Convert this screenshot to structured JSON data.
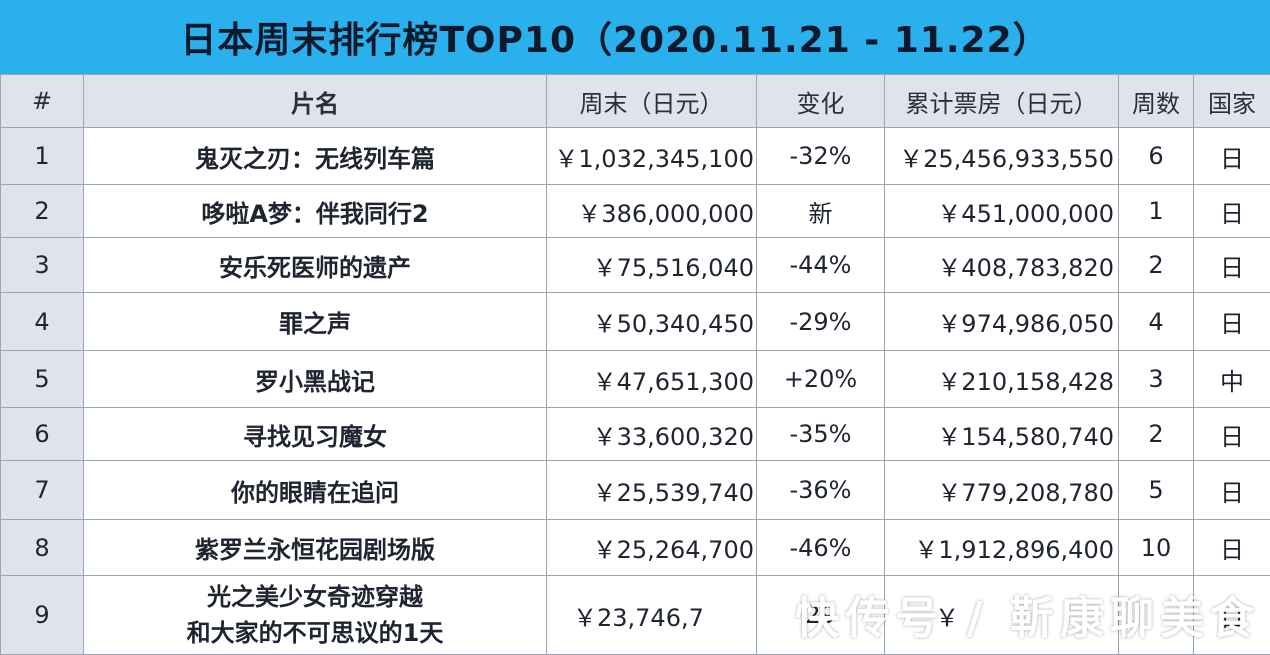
{
  "title": "日本周末排行榜TOP10（2020.11.21 - 11.22）",
  "columns": {
    "rank": "#",
    "name": "片名",
    "weekend": "周末（日元）",
    "change": "变化",
    "cumulative": "累计票房（日元）",
    "weeks": "周数",
    "country": "国家"
  },
  "rows": [
    {
      "rank": "1",
      "name": "鬼灭之刃：无线列车篇",
      "weekend": "￥1,032,345,100",
      "change": "-32%",
      "cumulative": "￥25,456,933,550",
      "weeks": "6",
      "country": "日"
    },
    {
      "rank": "2",
      "name": "哆啦A梦：伴我同行2",
      "weekend": "￥386,000,000",
      "change": "新",
      "cumulative": "￥451,000,000",
      "weeks": "1",
      "country": "日"
    },
    {
      "rank": "3",
      "name": "安乐死医师的遗产",
      "weekend": "￥75,516,040",
      "change": "-44%",
      "cumulative": "￥408,783,820",
      "weeks": "2",
      "country": "日"
    },
    {
      "rank": "4",
      "name": "罪之声",
      "weekend": "￥50,340,450",
      "change": "-29%",
      "cumulative": "￥974,986,050",
      "weeks": "4",
      "country": "日"
    },
    {
      "rank": "5",
      "name": "罗小黑战记",
      "weekend": "￥47,651,300",
      "change": "+20%",
      "cumulative": "￥210,158,428",
      "weeks": "3",
      "country": "中"
    },
    {
      "rank": "6",
      "name": "寻找见习魔女",
      "weekend": "￥33,600,320",
      "change": "-35%",
      "cumulative": "￥154,580,740",
      "weeks": "2",
      "country": "日"
    },
    {
      "rank": "7",
      "name": "你的眼睛在追问",
      "weekend": "￥25,539,740",
      "change": "-36%",
      "cumulative": "￥779,208,780",
      "weeks": "5",
      "country": "日"
    },
    {
      "rank": "8",
      "name": "紫罗兰永恒花园剧场版",
      "weekend": "￥25,264,700",
      "change": "-46%",
      "cumulative": "￥1,912,896,400",
      "weeks": "10",
      "country": "日"
    },
    {
      "rank": "9",
      "name_line1": "光之美少女奇迹穿越",
      "name_line2": "和大家的不可思议的1天",
      "weekend": "￥23,746,7",
      "change": "29",
      "cumulative": "￥",
      "weeks": "",
      "country": "日"
    }
  ],
  "watermark": "快传号 / 靳康聊美食",
  "colors": {
    "title_bar": "#2ab0ec",
    "header_bg": "#dfe4ec",
    "border": "#9aa6b5"
  }
}
